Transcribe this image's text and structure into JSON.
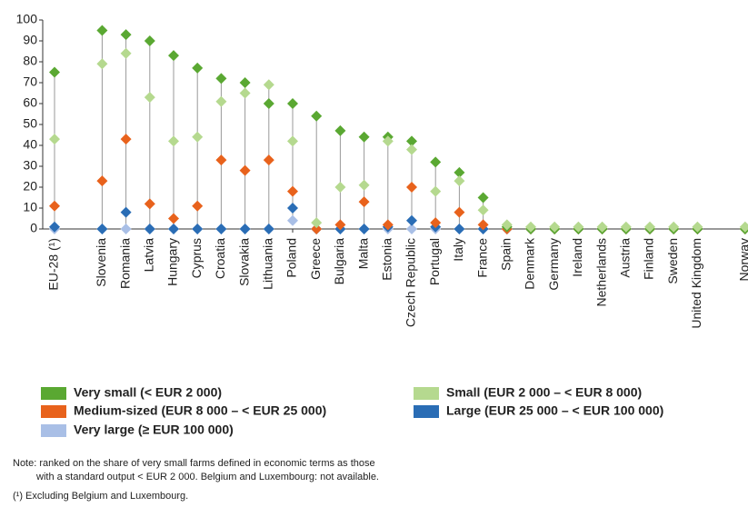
{
  "chart_data": {
    "type": "dot",
    "categories": [
      "EU-28 (¹)",
      null,
      "Slovenia",
      "Romania",
      "Latvia",
      "Hungary",
      "Cyprus",
      "Croatia",
      "Slovakia",
      "Lithuania",
      "Poland",
      "Greece",
      "Bulgaria",
      "Malta",
      "Estonia",
      "Czech Republic",
      "Portugal",
      "Italy",
      "France",
      "Spain",
      "Denmark",
      "Germany",
      "Ireland",
      "Netherlands",
      "Austria",
      "Finland",
      "Sweden",
      "United Kingdom",
      null,
      "Norway"
    ],
    "series": [
      {
        "name": "Very small (< EUR 2 000)",
        "color": "#5aa832",
        "values": [
          75,
          null,
          95,
          93,
          90,
          83,
          77,
          72,
          70,
          60,
          60,
          54,
          47,
          44,
          44,
          42,
          32,
          27,
          15,
          1,
          0,
          0,
          0,
          0,
          0,
          0,
          0,
          0,
          null,
          0
        ]
      },
      {
        "name": "Small (EUR 2 000 – < EUR 8 000)",
        "color": "#b5d98f",
        "values": [
          43,
          null,
          79,
          84,
          63,
          42,
          44,
          61,
          65,
          69,
          42,
          3,
          20,
          21,
          42,
          38,
          18,
          23,
          9,
          2,
          1,
          1,
          1,
          1,
          1,
          1,
          1,
          1,
          null,
          1
        ]
      },
      {
        "name": "Medium-sized (EUR 8 000 – < EUR 25 000)",
        "color": "#e8621c",
        "values": [
          11,
          null,
          23,
          43,
          12,
          5,
          11,
          33,
          28,
          33,
          18,
          0,
          2,
          13,
          2,
          20,
          3,
          8,
          2,
          0,
          0,
          0,
          0,
          0,
          0,
          0,
          0,
          0,
          null,
          0
        ]
      },
      {
        "name": "Large (EUR 25 000 – < EUR 100 000)",
        "color": "#2a6db5",
        "values": [
          1,
          null,
          0,
          8,
          0,
          0,
          0,
          0,
          0,
          0,
          10,
          0,
          0,
          0,
          1,
          4,
          1,
          0,
          0,
          0,
          0,
          0,
          0,
          0,
          0,
          0,
          0,
          0,
          null,
          0
        ]
      },
      {
        "name": "Very large (≥ EUR 100 000)",
        "color": "#a9bfe6",
        "values": [
          0,
          null,
          0,
          0,
          0,
          0,
          0,
          0,
          0,
          0,
          4,
          0,
          0,
          0,
          0,
          0,
          0,
          0,
          0,
          0,
          0,
          0,
          0,
          0,
          0,
          0,
          0,
          0,
          null,
          0
        ]
      }
    ],
    "ylim": [
      0,
      100
    ],
    "yticks": [
      0,
      10,
      20,
      30,
      40,
      50,
      60,
      70,
      80,
      90,
      100
    ],
    "grid": false,
    "notes": [
      "Note: ranked on the share of very small farms defined in economic terms as those",
      "with a standard output < EUR 2 000. Belgium and Luxembourg: not available.",
      "(¹) Excluding Belgium and Luxembourg."
    ]
  }
}
